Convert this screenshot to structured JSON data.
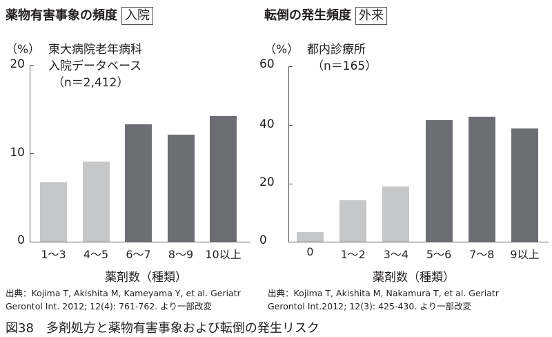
{
  "caption": "図38　多剤処方と薬物有害事象および転倒の発生リスク",
  "colors": {
    "light_bar": "#c6c7c9",
    "dark_bar": "#6d6e73",
    "axis": "#555555"
  },
  "left": {
    "title": "薬物有害事象の頻度",
    "tag": "入院",
    "unit": "（%）",
    "note_lines": [
      "東大病院老年病科",
      "入院データベース",
      "（n＝2,412）"
    ],
    "yticks": [
      "20",
      "10",
      "0"
    ],
    "xlabel": "薬剤数（種類）",
    "source_lines": [
      "出典：Kojima T, Akishita M, Kameyama Y, et al. Geriatr",
      "Gerontol Int. 2012; 12(4): 761-762. より一部改変"
    ]
  },
  "right": {
    "title": "転倒の発生頻度",
    "tag": "外来",
    "unit": "（%）",
    "note_lines": [
      "都内診療所",
      "（n＝165）"
    ],
    "yticks": [
      "60",
      "40",
      "20",
      "0"
    ],
    "xlabel": "薬剤数（種類）",
    "source_lines": [
      "出典：Kojima T, Akishita M, Nakamura T, et al. Geriatr",
      "Gerontol Int.2012; 12(3): 425-430. より一部改変"
    ]
  },
  "chart_data": [
    {
      "type": "bar",
      "title": "薬物有害事象の頻度 入院",
      "subtitle": "東大病院老年病科 入院データベース (n=2,412)",
      "xlabel": "薬剤数（種類）",
      "ylabel": "(%)",
      "ylim": [
        0,
        20
      ],
      "yticks": [
        0,
        10,
        20
      ],
      "grid": false,
      "categories": [
        "1〜3",
        "4〜5",
        "6〜7",
        "8〜9",
        "10以上"
      ],
      "values": [
        6.7,
        9.1,
        13.3,
        12.1,
        14.2
      ],
      "bar_shades": [
        "light",
        "light",
        "dark",
        "dark",
        "dark"
      ]
    },
    {
      "type": "bar",
      "title": "転倒の発生頻度 外来",
      "subtitle": "都内診療所 (n=165)",
      "xlabel": "薬剤数（種類）",
      "ylabel": "(%)",
      "ylim": [
        0,
        60
      ],
      "yticks": [
        0,
        20,
        40,
        60
      ],
      "grid": false,
      "categories": [
        "0",
        "1〜2",
        "3〜4",
        "5〜6",
        "7〜8",
        "9以上"
      ],
      "values": [
        3.3,
        14.2,
        18.9,
        41.4,
        42.6,
        38.6
      ],
      "bar_shades": [
        "light",
        "light",
        "light",
        "dark",
        "dark",
        "dark"
      ]
    }
  ]
}
